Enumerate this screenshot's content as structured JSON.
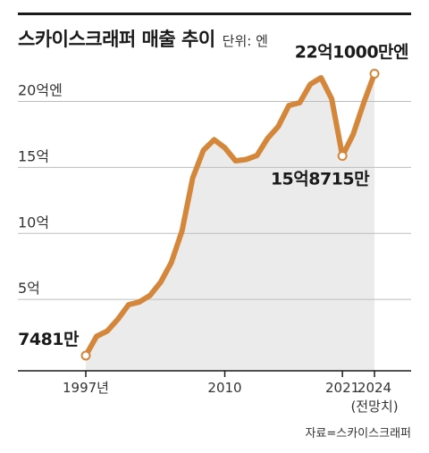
{
  "header": {
    "title": "스카이스크래퍼 매출 추이",
    "unit": "단위: 엔"
  },
  "source": "자료=스카이스크래퍼",
  "colors": {
    "line": "#d4873a",
    "area": "#ebebeb",
    "grid": "#bdbdbd",
    "axis": "#1a1a1a",
    "text": "#1a1a1a"
  },
  "chart_data": {
    "type": "line",
    "title": "스카이스크래퍼 매출 추이",
    "unit": "단위: 엔",
    "ylim": [
      0,
      22
    ],
    "xlim": [
      1997,
      2024
    ],
    "grid": true,
    "y_ticks": [
      {
        "value": 20,
        "label": "20억엔"
      },
      {
        "value": 15,
        "label": "15억"
      },
      {
        "value": 10,
        "label": "10억"
      },
      {
        "value": 5,
        "label": "5억"
      }
    ],
    "x_ticks": [
      {
        "value": 1997,
        "label": "1997년"
      },
      {
        "value": 2010,
        "label": "2010"
      },
      {
        "value": 2021,
        "label": "2021"
      },
      {
        "value": 2024,
        "label": "2024",
        "sublabel": "(전망치)"
      }
    ],
    "x": [
      1997,
      1998,
      1999,
      2000,
      2001,
      2002,
      2003,
      2004,
      2005,
      2006,
      2007,
      2008,
      2009,
      2010,
      2011,
      2012,
      2013,
      2014,
      2015,
      2016,
      2017,
      2018,
      2019,
      2020,
      2021,
      2022,
      2023,
      2024
    ],
    "series": [
      {
        "values": [
          0.7481,
          2.2,
          2.6,
          3.5,
          4.6,
          4.8,
          5.3,
          6.3,
          7.8,
          10.2,
          14.2,
          16.3,
          17.1,
          16.5,
          15.5,
          15.6,
          15.9,
          17.2,
          18.1,
          19.7,
          19.9,
          21.3,
          21.8,
          20.2,
          15.8715,
          17.5,
          19.9,
          22.1
        ]
      }
    ],
    "annotations": [
      {
        "x": 1997,
        "y": 0.7481,
        "text": "7481만"
      },
      {
        "x": 2021,
        "y": 15.8715,
        "text": "15억8715만"
      },
      {
        "x": 2024,
        "y": 22.1,
        "text": "22억1000만엔"
      }
    ],
    "marked_points": [
      1997,
      2021,
      2024
    ]
  }
}
